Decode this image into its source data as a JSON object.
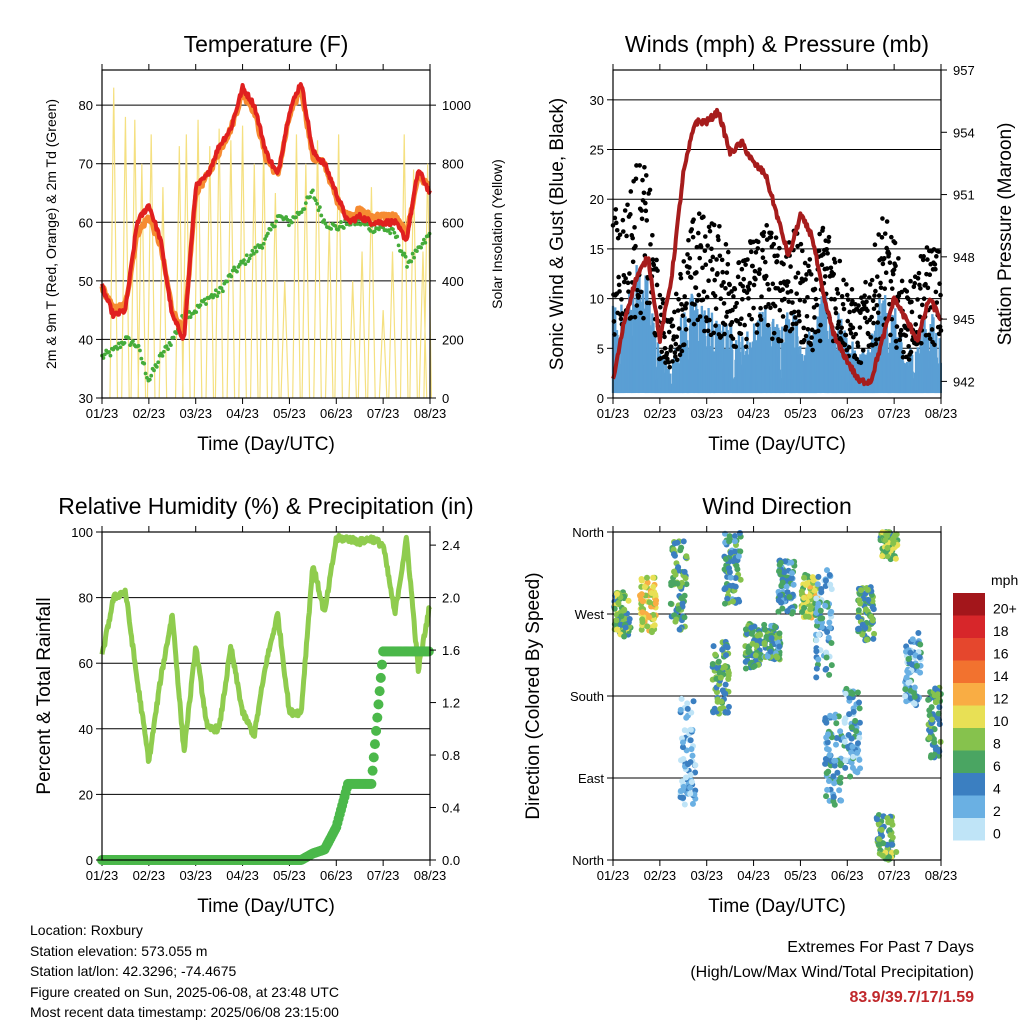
{
  "x_ticks": [
    "01/23",
    "02/23",
    "03/23",
    "04/23",
    "05/23",
    "06/23",
    "07/23",
    "08/23"
  ],
  "x_label": "Time (Day/UTC)",
  "info": {
    "location": "Location: Roxbury",
    "elevation": "Station elevation: 573.055 m",
    "latlon": "Station lat/lon: 42.3296; -74.4675",
    "created": "Figure created on Sun, 2025-06-08, at 23:48 UTC",
    "recent": "Most recent data timestamp: 2025/06/08 23:15:00"
  },
  "extremes": {
    "title": "Extremes For Past 7 Days",
    "subtitle": "(High/Low/Max Wind/Total Precipitation)",
    "values": "83.9/39.7/17/1.59"
  },
  "colors": {
    "temp2m": "#e0201f",
    "temp9m": "#f68b31",
    "dewpoint": "#45ac3a",
    "solar": "#f5e080",
    "gust": "#000000",
    "wind": "#5a9fd4",
    "pressure": "#a61c1c",
    "rh": "#8fcc4e",
    "precip": "#4bb84a"
  },
  "chart_data": [
    {
      "type": "line",
      "title": "Temperature (F)",
      "xlabel": "Time (Day/UTC)",
      "ylabel": "2m & 9m T (Red, Orange) & 2m Td (Green)",
      "ylabel_right": "Solar Insolation (Yellow)",
      "x_categories": [
        "01/23",
        "02/23",
        "03/23",
        "04/23",
        "05/23",
        "06/23",
        "07/23",
        "08/23"
      ],
      "ylim": [
        30,
        86
      ],
      "yticks": [
        30,
        40,
        50,
        60,
        70,
        80
      ],
      "ylim_right": [
        0,
        1120
      ],
      "yticks_right": [
        0,
        200,
        400,
        600,
        800,
        1000
      ],
      "x": [
        0,
        0.25,
        0.5,
        0.75,
        1,
        1.25,
        1.5,
        1.75,
        2,
        2.25,
        2.5,
        2.75,
        3,
        3.25,
        3.5,
        3.75,
        4,
        4.25,
        4.5,
        4.75,
        5,
        5.25,
        5.5,
        5.75,
        6,
        6.25,
        6.5,
        6.75,
        7
      ],
      "series": [
        {
          "name": "2m T",
          "values": [
            49,
            44,
            45,
            60,
            63,
            57,
            44,
            40,
            66,
            68,
            73,
            76,
            83,
            80,
            72,
            68,
            79,
            84,
            72,
            70,
            65,
            60,
            61,
            60,
            60,
            60,
            57,
            69,
            65
          ]
        },
        {
          "name": "9m T",
          "values": [
            49,
            45,
            46,
            58,
            61,
            56,
            45,
            41,
            65,
            68,
            72,
            76,
            82,
            79,
            71,
            68,
            78,
            83,
            71,
            70,
            64,
            61,
            62,
            61,
            61,
            61,
            58,
            68,
            66
          ]
        },
        {
          "name": "2m Td",
          "values": [
            37,
            38,
            40,
            39,
            33,
            37,
            40,
            44,
            45,
            47,
            48,
            51,
            53,
            55,
            57,
            61,
            60,
            62,
            65,
            60,
            59,
            60,
            60,
            59,
            59,
            58,
            53,
            55,
            58
          ]
        },
        {
          "name": "Solar Insolation",
          "peaks": [
            1060,
            960,
            950,
            800,
            900,
            720,
            860,
            900,
            950,
            860,
            920,
            880,
            930,
            800,
            870,
            700,
            400,
            900,
            800,
            880,
            600,
            900,
            400,
            500,
            720,
            300,
            500,
            900,
            780,
            500,
            800
          ],
          "peak_x": [
            0.25,
            0.5,
            0.7,
            0.85,
            1.05,
            1.3,
            1.65,
            1.8,
            2.05,
            2.3,
            2.5,
            2.75,
            3.0,
            3.25,
            3.45,
            3.7,
            3.9,
            4.15,
            4.35,
            4.6,
            4.85,
            5.05,
            5.35,
            5.55,
            5.75,
            6.0,
            6.2,
            6.45,
            6.65,
            6.85,
            6.95
          ]
        }
      ]
    },
    {
      "type": "scatter",
      "title": "Winds (mph) & Pressure (mb)",
      "xlabel": "Time (Day/UTC)",
      "ylabel": "Sonic Wind & Gust (Blue, Black)",
      "ylabel_right": "Station Pressure (Maroon)",
      "x_categories": [
        "01/23",
        "02/23",
        "03/23",
        "04/23",
        "05/23",
        "06/23",
        "07/23",
        "08/23"
      ],
      "ylim": [
        0,
        33
      ],
      "yticks": [
        0,
        5,
        10,
        15,
        20,
        25,
        30
      ],
      "ylim_right": [
        941.2,
        957
      ],
      "yticks_right": [
        942,
        945,
        948,
        951,
        954,
        957
      ],
      "x": [
        0,
        0.25,
        0.5,
        0.75,
        1,
        1.25,
        1.5,
        1.75,
        2,
        2.25,
        2.5,
        2.75,
        3,
        3.25,
        3.5,
        3.75,
        4,
        4.25,
        4.5,
        4.75,
        5,
        5.25,
        5.5,
        5.75,
        6,
        6.25,
        6.5,
        6.75,
        7
      ],
      "series": [
        {
          "name": "Gust",
          "values": [
            14,
            15,
            18,
            17,
            8,
            6,
            11,
            14,
            14,
            13,
            12,
            10,
            13,
            14,
            12,
            13,
            12,
            10,
            14,
            12,
            9,
            7,
            10,
            14,
            12,
            8,
            10,
            12,
            11
          ]
        },
        {
          "name": "Wind",
          "values": [
            6,
            6,
            9,
            8,
            3,
            2,
            6,
            7,
            6,
            5,
            5,
            4,
            5,
            6,
            5,
            6,
            5,
            4,
            7,
            6,
            4,
            3,
            4,
            7,
            6,
            3,
            4,
            6,
            4
          ]
        },
        {
          "name": "Pressure",
          "values": [
            942,
            945,
            947,
            948,
            944,
            947,
            952,
            954.5,
            954.5,
            955,
            953,
            953.5,
            952.5,
            952,
            950,
            948,
            950,
            949,
            946,
            944,
            943,
            942,
            942,
            944,
            946,
            945,
            944,
            946,
            945
          ]
        }
      ]
    },
    {
      "type": "line",
      "title": "Relative Humidity (%) & Precipitation (in)",
      "xlabel": "Time (Day/UTC)",
      "ylabel": "Percent & Total Rainfall",
      "x_categories": [
        "01/23",
        "02/23",
        "03/23",
        "04/23",
        "05/23",
        "06/23",
        "07/23",
        "08/23"
      ],
      "ylim": [
        0,
        100
      ],
      "yticks": [
        0,
        20,
        40,
        60,
        80,
        100
      ],
      "ylim_right": [
        0,
        2.5
      ],
      "yticks_right": [
        0,
        0.4,
        0.8,
        1.2,
        1.6,
        2.0,
        2.4
      ],
      "yticks_right_labels": [
        "0.0",
        "0.4",
        "0.8",
        "1.2",
        "1.6",
        "2.0",
        "2.4"
      ],
      "x": [
        0,
        0.25,
        0.5,
        0.75,
        1,
        1.25,
        1.5,
        1.75,
        2,
        2.25,
        2.5,
        2.75,
        3,
        3.25,
        3.5,
        3.75,
        4,
        4.25,
        4.5,
        4.75,
        5,
        5.25,
        5.5,
        5.75,
        6,
        6.25,
        6.5,
        6.75,
        7
      ],
      "series": [
        {
          "name": "RH",
          "values": [
            62,
            80,
            82,
            55,
            30,
            55,
            75,
            33,
            65,
            40,
            40,
            65,
            45,
            38,
            60,
            75,
            45,
            45,
            90,
            75,
            98,
            98,
            97,
            98,
            96,
            75,
            98,
            58,
            78
          ]
        },
        {
          "name": "Precip",
          "values": [
            0,
            0,
            0,
            0,
            0,
            0,
            0,
            0,
            0,
            0,
            0,
            0,
            0,
            0,
            0,
            0,
            0,
            0,
            0.05,
            0.08,
            0.25,
            0.58,
            0.58,
            0.58,
            1.59,
            1.59,
            1.59,
            1.59,
            1.59
          ]
        }
      ]
    },
    {
      "type": "scatter",
      "title": "Wind Direction",
      "xlabel": "Time (Day/UTC)",
      "ylabel": "Direction (Colored By Speed)",
      "x_categories": [
        "01/23",
        "02/23",
        "03/23",
        "04/23",
        "05/23",
        "06/23",
        "07/23",
        "08/23"
      ],
      "y_categories": [
        "North",
        "East",
        "South",
        "West",
        "North"
      ],
      "colorbar": {
        "title": "mph",
        "labels": [
          "20+",
          "18",
          "16",
          "14",
          "12",
          "10",
          "8",
          "6",
          "4",
          "2",
          "0"
        ],
        "colors": [
          "#a3161b",
          "#d7262a",
          "#e5472d",
          "#f2722f",
          "#f9ad44",
          "#e8e055",
          "#86c24d",
          "#4aa562",
          "#3b7fc1",
          "#6ab0e3",
          "#bfe4f7"
        ]
      },
      "clusters": [
        {
          "x": 0.2,
          "dir": 270,
          "spread": 25,
          "speed": 7
        },
        {
          "x": 0.75,
          "dir": 280,
          "spread": 30,
          "speed": 10
        },
        {
          "x": 1.4,
          "dir": 300,
          "spread": 50,
          "speed": 6
        },
        {
          "x": 1.6,
          "dir": 120,
          "spread": 60,
          "speed": 2
        },
        {
          "x": 2.3,
          "dir": 200,
          "spread": 40,
          "speed": 6
        },
        {
          "x": 2.55,
          "dir": 320,
          "spread": 40,
          "speed": 5
        },
        {
          "x": 3.0,
          "dir": 235,
          "spread": 25,
          "speed": 6
        },
        {
          "x": 3.4,
          "dir": 240,
          "spread": 20,
          "speed": 5
        },
        {
          "x": 3.7,
          "dir": 300,
          "spread": 30,
          "speed": 4
        },
        {
          "x": 4.2,
          "dir": 290,
          "spread": 25,
          "speed": 9
        },
        {
          "x": 4.5,
          "dir": 260,
          "spread": 60,
          "speed": 3
        },
        {
          "x": 4.7,
          "dir": 110,
          "spread": 50,
          "speed": 4
        },
        {
          "x": 5.1,
          "dir": 140,
          "spread": 50,
          "speed": 3
        },
        {
          "x": 5.4,
          "dir": 270,
          "spread": 30,
          "speed": 6
        },
        {
          "x": 5.8,
          "dir": 20,
          "spread": 30,
          "speed": 6
        },
        {
          "x": 5.9,
          "dir": 350,
          "spread": 20,
          "speed": 8
        },
        {
          "x": 6.4,
          "dir": 210,
          "spread": 40,
          "speed": 3
        },
        {
          "x": 6.9,
          "dir": 150,
          "spread": 40,
          "speed": 6
        }
      ]
    }
  ]
}
